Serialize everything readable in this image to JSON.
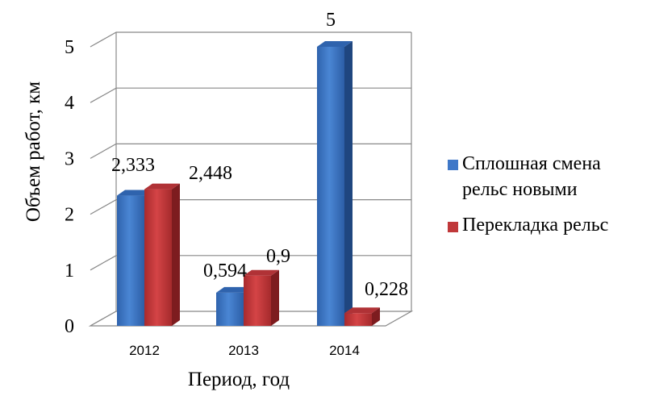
{
  "chart_data": {
    "type": "bar",
    "style": "3d-clustered-column",
    "categories": [
      "2012",
      "2013",
      "2014"
    ],
    "series": [
      {
        "name": "Сплошная смена рельс новыми",
        "values": [
          2.333,
          0.594,
          5
        ],
        "labels": [
          "2,333",
          "0,594",
          "5"
        ],
        "color": "#3f78c8"
      },
      {
        "name": "Перекладка рельс",
        "values": [
          2.448,
          0.9,
          0.228
        ],
        "labels": [
          "2,448",
          "0,9",
          "0,228"
        ],
        "color": "#c0383a"
      }
    ],
    "xlabel": "Период, год",
    "ylabel": "Объем работ, км",
    "ylim": [
      0,
      5
    ],
    "yticks": [
      "0",
      "1",
      "2",
      "3",
      "4",
      "5"
    ],
    "grid": true,
    "legend_position": "right",
    "legend_lines": [
      [
        "Сплошная смена",
        "рельс новыми"
      ],
      [
        "Перекладка рельс"
      ]
    ]
  }
}
